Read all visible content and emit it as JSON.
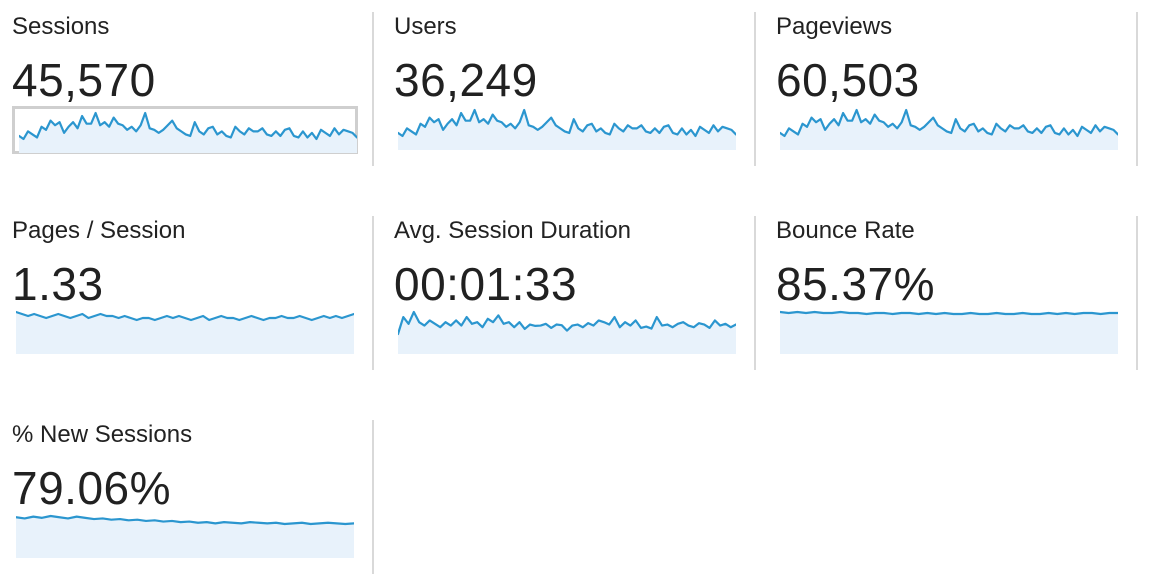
{
  "metrics": [
    {
      "label": "Sessions",
      "value": "45,570",
      "series": [
        3,
        1,
        6,
        4,
        2,
        9,
        7,
        13,
        10,
        12,
        5,
        9,
        12,
        8,
        16,
        11,
        11,
        18,
        10,
        12,
        9,
        15,
        11,
        10,
        7,
        9,
        6,
        10,
        18,
        8,
        7,
        5,
        7,
        10,
        13,
        8,
        6,
        4,
        3,
        12,
        6,
        4,
        8,
        9,
        4,
        6,
        3,
        2,
        9,
        6,
        4,
        8,
        6,
        6,
        8,
        4,
        3,
        6,
        3,
        7,
        8,
        3,
        2,
        6,
        2,
        5,
        1,
        7,
        5,
        3,
        8,
        4,
        7,
        6,
        5,
        2
      ]
    },
    {
      "label": "Users",
      "value": "36,249",
      "series": [
        3,
        1,
        6,
        4,
        2,
        9,
        7,
        13,
        10,
        12,
        5,
        9,
        12,
        8,
        16,
        11,
        11,
        18,
        10,
        12,
        9,
        15,
        11,
        10,
        7,
        9,
        6,
        10,
        18,
        8,
        7,
        5,
        7,
        10,
        13,
        8,
        6,
        4,
        3,
        12,
        6,
        4,
        8,
        9,
        4,
        6,
        3,
        2,
        9,
        6,
        4,
        8,
        6,
        6,
        8,
        4,
        3,
        6,
        3,
        7,
        8,
        3,
        2,
        6,
        2,
        5,
        1,
        7,
        5,
        3,
        8,
        4,
        7,
        6,
        5,
        2
      ]
    },
    {
      "label": "Pageviews",
      "value": "60,503",
      "series": [
        3,
        1,
        6,
        4,
        2,
        9,
        7,
        13,
        10,
        12,
        5,
        9,
        12,
        8,
        16,
        11,
        11,
        18,
        10,
        12,
        9,
        15,
        11,
        10,
        7,
        9,
        6,
        10,
        18,
        8,
        7,
        5,
        7,
        10,
        13,
        8,
        6,
        4,
        3,
        12,
        6,
        4,
        8,
        9,
        4,
        6,
        3,
        2,
        9,
        6,
        4,
        8,
        6,
        6,
        8,
        4,
        3,
        6,
        3,
        7,
        8,
        3,
        2,
        6,
        2,
        5,
        1,
        7,
        5,
        3,
        8,
        4,
        7,
        6,
        5,
        2
      ]
    },
    {
      "label": "Pages / Session",
      "value": "1.33",
      "series": [
        1.36,
        1.35,
        1.34,
        1.35,
        1.34,
        1.33,
        1.34,
        1.35,
        1.34,
        1.33,
        1.34,
        1.35,
        1.33,
        1.34,
        1.35,
        1.34,
        1.34,
        1.33,
        1.34,
        1.33,
        1.32,
        1.33,
        1.33,
        1.32,
        1.33,
        1.34,
        1.33,
        1.34,
        1.33,
        1.32,
        1.33,
        1.34,
        1.32,
        1.33,
        1.34,
        1.33,
        1.33,
        1.32,
        1.33,
        1.34,
        1.33,
        1.32,
        1.33,
        1.33,
        1.34,
        1.33,
        1.33,
        1.34,
        1.33,
        1.32,
        1.33,
        1.34,
        1.33,
        1.34,
        1.33,
        1.34,
        1.35
      ]
    },
    {
      "label": "Avg. Session Duration",
      "value": "00:01:33",
      "series": [
        60,
        110,
        90,
        125,
        95,
        85,
        100,
        90,
        80,
        95,
        85,
        100,
        85,
        110,
        90,
        95,
        80,
        105,
        95,
        115,
        90,
        95,
        80,
        95,
        75,
        88,
        84,
        85,
        90,
        78,
        88,
        86,
        70,
        85,
        88,
        80,
        92,
        85,
        100,
        95,
        88,
        110,
        80,
        95,
        85,
        100,
        78,
        82,
        76,
        110,
        85,
        88,
        80,
        90,
        95,
        85,
        80,
        92,
        88,
        78,
        100,
        85,
        90,
        80,
        88
      ]
    },
    {
      "label": "Bounce Rate",
      "value": "85.37%",
      "series": [
        85.5,
        85.4,
        85.5,
        85.4,
        85.5,
        85.4,
        85.4,
        85.5,
        85.4,
        85.4,
        85.3,
        85.4,
        85.4,
        85.3,
        85.4,
        85.4,
        85.3,
        85.4,
        85.3,
        85.4,
        85.3,
        85.3,
        85.4,
        85.3,
        85.3,
        85.4,
        85.3,
        85.3,
        85.4,
        85.3,
        85.3,
        85.4,
        85.3,
        85.4,
        85.3,
        85.4,
        85.4,
        85.3,
        85.4,
        85.4
      ]
    },
    {
      "label": "% New Sessions",
      "value": "79.06%",
      "series": [
        79.8,
        79.6,
        79.9,
        79.7,
        80.0,
        79.8,
        79.6,
        79.9,
        79.7,
        79.5,
        79.6,
        79.4,
        79.5,
        79.3,
        79.4,
        79.2,
        79.3,
        79.1,
        79.2,
        79.0,
        79.1,
        78.9,
        79.0,
        78.8,
        79.0,
        78.9,
        78.8,
        79.0,
        78.9,
        78.8,
        78.9,
        78.7,
        78.8,
        78.9,
        78.7,
        78.8,
        78.9,
        78.8,
        78.7,
        78.8
      ]
    }
  ],
  "colors": {
    "line": "#2b96cf",
    "area": "#e8f2fb",
    "divider": "#d9d9d9",
    "text": "#212121"
  }
}
